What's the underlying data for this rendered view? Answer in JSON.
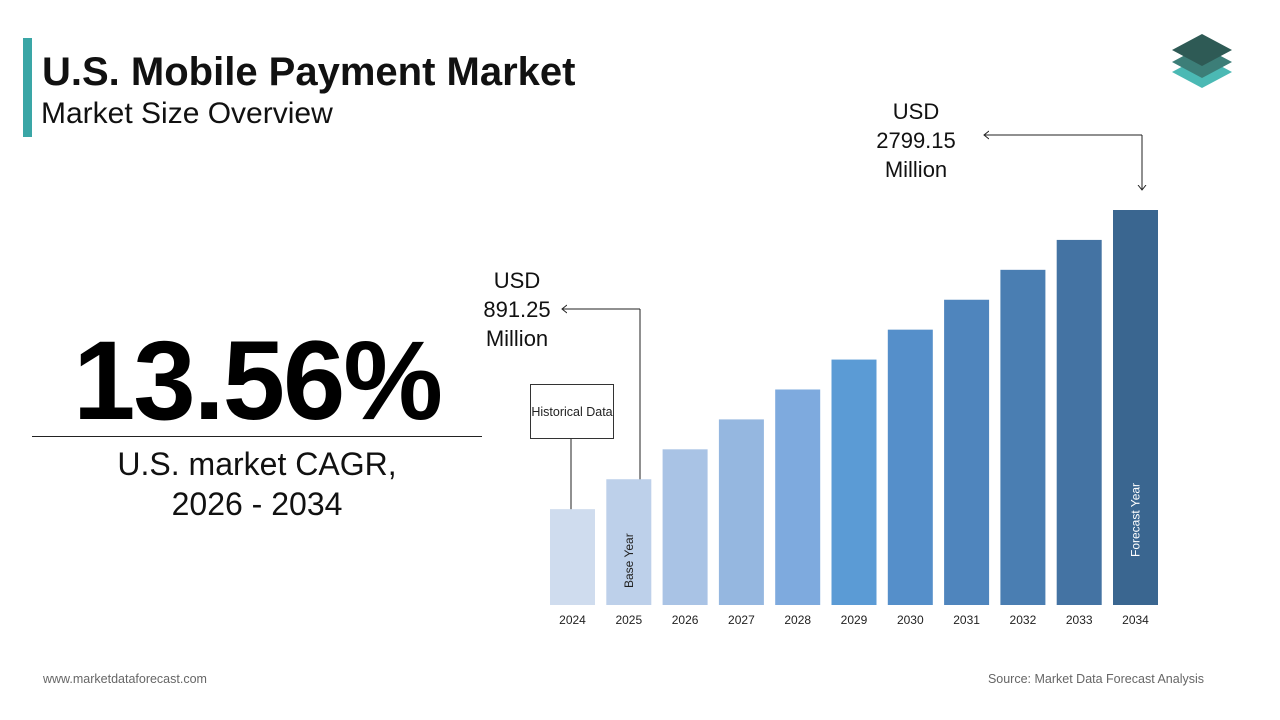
{
  "chart_data": {
    "type": "bar",
    "title": "U.S. Mobile Payment Market",
    "subtitle": "Market Size Overview",
    "cagr": "13.56%",
    "cagr_label": "U.S. market CAGR, 2026 - 2034",
    "categories": [
      "2024",
      "2025",
      "2026",
      "2027",
      "2028",
      "2029",
      "2030",
      "2031",
      "2032",
      "2033",
      "2034"
    ],
    "values": [
      679.26,
      891.25,
      1103.24,
      1315.23,
      1527.22,
      1739.21,
      1951.2,
      2163.19,
      2375.18,
      2587.17,
      2799.15
    ],
    "value_labels": [
      null,
      "USD 891.25 Million",
      null,
      null,
      null,
      null,
      null,
      null,
      null,
      null,
      "USD 2799.15 Million"
    ],
    "colors": [
      "#cfdcee",
      "#bdd0ea",
      "#a9c3e5",
      "#95b7e0",
      "#7eaade",
      "#5b9bd5",
      "#558fca",
      "#4f85bd",
      "#4a7eb2",
      "#4473a3",
      "#3a6690"
    ],
    "annotations": [
      "Historical Data",
      "Base Year",
      "Forecast Year"
    ],
    "footer_left": "www.marketdataforecast.com",
    "footer_right": "Source: Market Data Forecast Analysis"
  }
}
